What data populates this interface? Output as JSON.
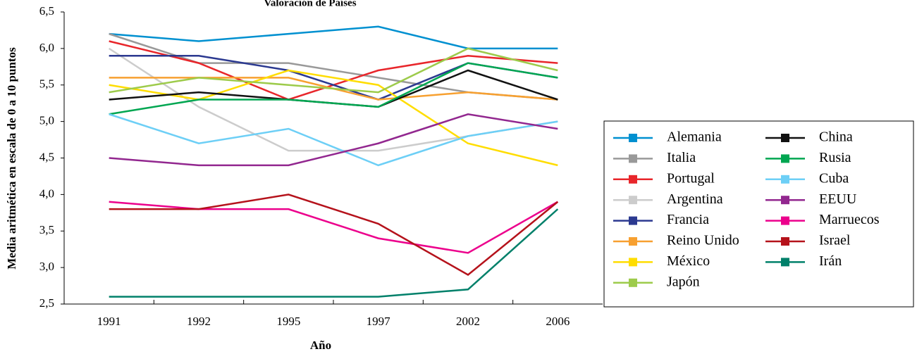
{
  "chart_data": {
    "type": "line",
    "title": "Valoración de Países",
    "x_label": "Año",
    "y_label": "Media aritmética en escala de 0 a 10 puntos",
    "categories": [
      "1991",
      "1992",
      "1995",
      "1997",
      "2002",
      "2006"
    ],
    "ylim": [
      2.5,
      6.5
    ],
    "yticks": [
      {
        "value": 2.5,
        "label": "2,5"
      },
      {
        "value": 3,
        "label": "3,0"
      },
      {
        "value": 3.5,
        "label": "3,5"
      },
      {
        "value": 4,
        "label": "4,0"
      },
      {
        "value": 4.5,
        "label": "4,5"
      },
      {
        "value": 5,
        "label": "5,0"
      },
      {
        "value": 5.5,
        "label": "5,5"
      },
      {
        "value": 6,
        "label": "6,0"
      },
      {
        "value": 6.5,
        "label": "6,5"
      }
    ],
    "legend": "right",
    "series": [
      {
        "name": "Alemania",
        "color": "#0090d0",
        "values": [
          6.2,
          6.1,
          6.2,
          6.3,
          6.0,
          6.0
        ]
      },
      {
        "name": "Italia",
        "color": "#999999",
        "values": [
          6.2,
          5.8,
          5.8,
          5.6,
          5.4,
          5.3
        ]
      },
      {
        "name": "Portugal",
        "color": "#e8262b",
        "values": [
          6.1,
          5.8,
          5.3,
          5.7,
          5.9,
          5.8
        ]
      },
      {
        "name": "Argentina",
        "color": "#cccccc",
        "values": [
          6.0,
          5.2,
          4.6,
          4.6,
          4.8,
          5.0
        ]
      },
      {
        "name": "Francia",
        "color": "#2b3990",
        "values": [
          5.9,
          5.9,
          5.7,
          5.3,
          5.8,
          5.6
        ]
      },
      {
        "name": "Reino Unido",
        "color": "#f7a030",
        "values": [
          5.6,
          5.6,
          5.6,
          5.3,
          5.4,
          5.3
        ]
      },
      {
        "name": "México",
        "color": "#ffdd00",
        "values": [
          5.5,
          5.3,
          5.7,
          5.5,
          4.7,
          4.4
        ]
      },
      {
        "name": "Japón",
        "color": "#9dcb4b",
        "values": [
          5.4,
          5.6,
          5.5,
          5.4,
          6.0,
          5.7
        ]
      },
      {
        "name": "China",
        "color": "#111111",
        "values": [
          5.3,
          5.4,
          5.3,
          5.2,
          5.7,
          5.3
        ]
      },
      {
        "name": "Rusia",
        "color": "#00a651",
        "values": [
          5.1,
          5.3,
          5.3,
          5.2,
          5.8,
          5.6
        ]
      },
      {
        "name": "Cuba",
        "color": "#6dcff6",
        "values": [
          5.1,
          4.7,
          4.9,
          4.4,
          4.8,
          5.0
        ]
      },
      {
        "name": "EEUU",
        "color": "#92278f",
        "values": [
          4.5,
          4.4,
          4.4,
          4.7,
          5.1,
          4.9
        ]
      },
      {
        "name": "Marruecos",
        "color": "#ec008c",
        "values": [
          3.9,
          3.8,
          3.8,
          3.4,
          3.2,
          3.9
        ]
      },
      {
        "name": "Israel",
        "color": "#b5121b",
        "values": [
          3.8,
          3.8,
          4.0,
          3.6,
          2.9,
          3.9
        ]
      },
      {
        "name": "Irán",
        "color": "#00806a",
        "values": [
          2.6,
          2.6,
          2.6,
          2.6,
          2.7,
          3.8
        ]
      }
    ]
  }
}
